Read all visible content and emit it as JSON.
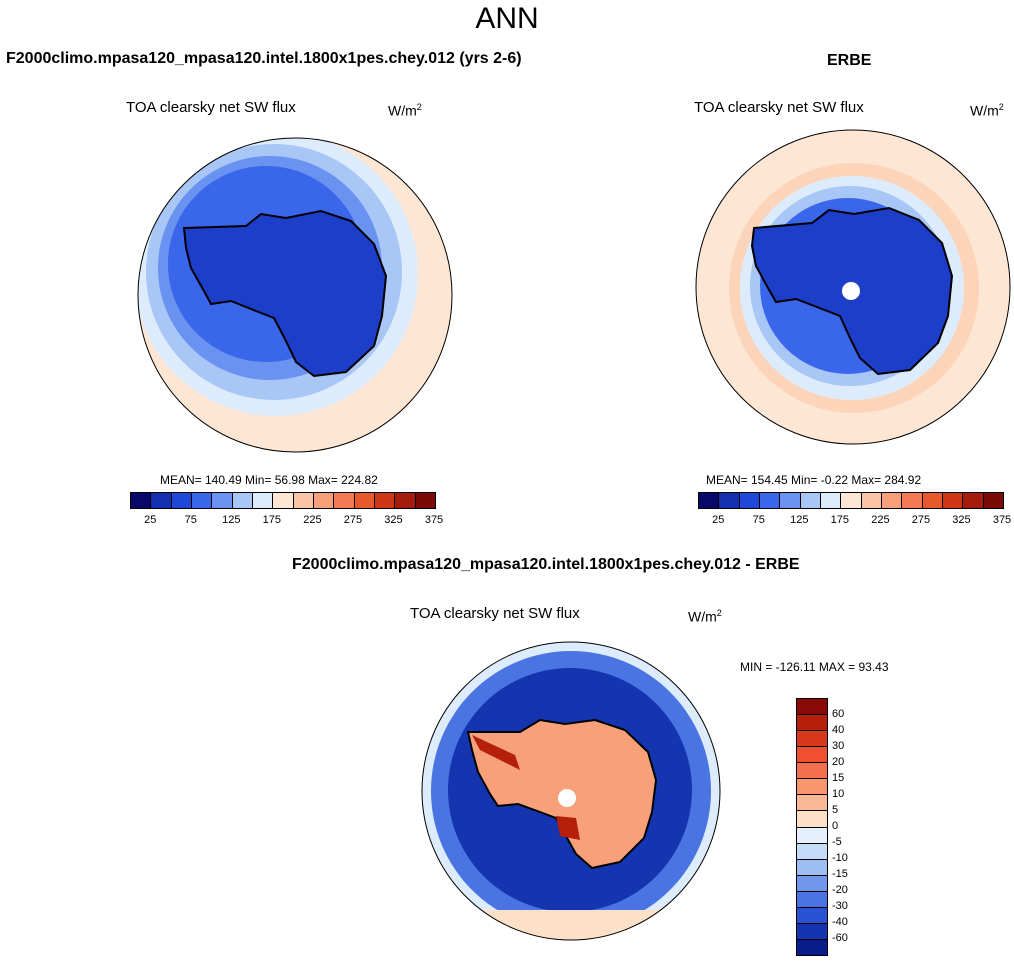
{
  "title": "ANN",
  "panel_left": {
    "case_title": "F2000climo.mpasa120_mpasa120.intel.1800x1pes.chey.012 (yrs 2-6)",
    "variable": "TOA clearsky net SW flux",
    "units_base": "W/m",
    "units_exp": "2",
    "stats": "MEAN= 140.49  Min=  56.98  Max= 224.82"
  },
  "panel_right": {
    "case_title": "ERBE",
    "variable": "TOA clearsky net SW flux",
    "units_base": "W/m",
    "units_exp": "2",
    "stats": "MEAN= 154.45  Min=  -0.22  Max= 284.92"
  },
  "panel_diff": {
    "case_title": "F2000climo.mpasa120_mpasa120.intel.1800x1pes.chey.012 - ERBE",
    "variable": "TOA clearsky net SW flux",
    "units_base": "W/m",
    "units_exp": "2",
    "stats": "MIN = -126.11 MAX =  93.43"
  },
  "colorbar_fields": {
    "ticks": [
      "25",
      "75",
      "125",
      "175",
      "225",
      "275",
      "325",
      "375"
    ],
    "colors": [
      "#08086b",
      "#1230b0",
      "#1f48d8",
      "#3a66ec",
      "#6a92f0",
      "#a8c6f6",
      "#dcecfc",
      "#fde6d4",
      "#fbc4a4",
      "#f8a07a",
      "#f37a52",
      "#e85a2c",
      "#cc3614",
      "#a51c0c",
      "#7a0a06"
    ]
  },
  "colorbar_diff": {
    "ticks": [
      "60",
      "40",
      "30",
      "20",
      "15",
      "10",
      "5",
      "0",
      "-5",
      "-10",
      "-15",
      "-20",
      "-30",
      "-40",
      "-60"
    ],
    "colors": [
      "#8a0a08",
      "#b4200c",
      "#d8381a",
      "#ee5030",
      "#f4704e",
      "#f8966e",
      "#fbb894",
      "#fde0c8",
      "#e4f0fc",
      "#c4dcf8",
      "#9cbef2",
      "#7098ea",
      "#4a74e2",
      "#2a52d4",
      "#1434b0",
      "#0a1c8a"
    ]
  },
  "colors": {
    "ocean_far": "#fde6d4",
    "land_fill_fields": "#1c3ec8",
    "land_fill_diff": "#f8a07a",
    "ocean_diff": "#1a3cc0"
  }
}
